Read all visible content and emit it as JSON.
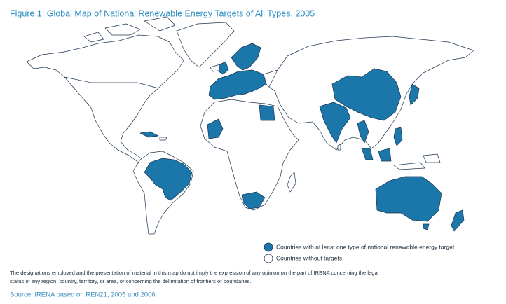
{
  "title": "Figure 1: Global Map of National Renewable Energy Targets of All Types, 2005",
  "legend": [
    {
      "label": "Countries with at least one type of national renewable energy target",
      "color": "#1b76a9"
    },
    {
      "label": "Countries without targets",
      "color": "#ffffff"
    }
  ],
  "disclaimer": [
    "The designations employed and the presentation of material in this map do not imply the expression of any opinion on the part of IRENA concerning the legal",
    "status of any region, country, territory, or area, or concerning the delimitation of frontiers or boundaries."
  ],
  "source": "Source: IRENA based on REN21, 2005 and 2006."
}
